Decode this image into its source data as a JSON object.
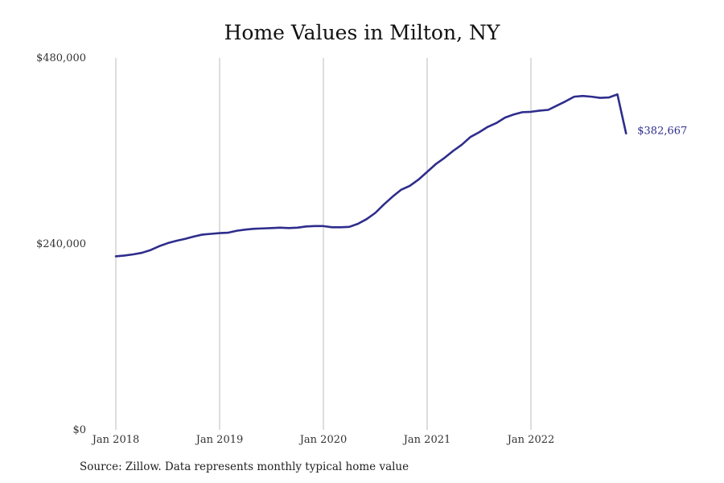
{
  "colors": {
    "line": "#2e2d8c",
    "grid": "#bbbbbb",
    "text": "#222222"
  },
  "chart_data": {
    "type": "line",
    "title": "Home Values in Milton, NY",
    "xlabel": "",
    "ylabel": "",
    "x_ticks": [
      "Jan 2018",
      "Jan 2019",
      "Jan 2020",
      "Jan 2021",
      "Jan 2022"
    ],
    "y_ticks": [
      "$0",
      "$240,000",
      "$480,000"
    ],
    "y_tick_values": [
      0,
      240000,
      480000
    ],
    "ylim": [
      0,
      480000
    ],
    "grid": "vertical",
    "end_label": "$382,667",
    "series": [
      {
        "x": [
          "2018-01",
          "2018-02",
          "2018-03",
          "2018-04",
          "2018-05",
          "2018-06",
          "2018-07",
          "2018-08",
          "2018-09",
          "2018-10",
          "2018-11",
          "2018-12",
          "2019-01",
          "2019-02",
          "2019-03",
          "2019-04",
          "2019-05",
          "2019-06",
          "2019-07",
          "2019-08",
          "2019-09",
          "2019-10",
          "2019-11",
          "2019-12",
          "2020-01",
          "2020-02",
          "2020-03",
          "2020-04",
          "2020-05",
          "2020-06",
          "2020-07",
          "2020-08",
          "2020-09",
          "2020-10",
          "2020-11",
          "2020-12",
          "2021-01",
          "2021-02",
          "2021-03",
          "2021-04",
          "2021-05",
          "2021-06",
          "2021-07",
          "2021-08",
          "2021-09",
          "2021-10",
          "2021-11",
          "2021-12",
          "2022-01",
          "2022-02",
          "2022-03",
          "2022-04",
          "2022-05",
          "2022-06",
          "2022-07",
          "2022-08",
          "2022-09",
          "2022-10",
          "2022-11",
          "2022-12"
        ],
        "values": [
          224000,
          225000,
          226500,
          228500,
          232000,
          237000,
          241000,
          244000,
          246500,
          249500,
          252000,
          253000,
          254000,
          254500,
          257000,
          258500,
          259500,
          260000,
          260500,
          261000,
          260500,
          261000,
          262500,
          263000,
          263000,
          261500,
          261500,
          262000,
          266000,
          272000,
          280000,
          291000,
          301000,
          310000,
          315000,
          323000,
          333000,
          343000,
          351000,
          360000,
          368000,
          378000,
          384000,
          391000,
          396000,
          403000,
          407000,
          410000,
          410500,
          412000,
          413000,
          418500,
          424000,
          430000,
          431000,
          430000,
          428500,
          429000,
          433000,
          382667
        ]
      }
    ]
  },
  "source": "Source: Zillow. Data represents monthly typical home value"
}
